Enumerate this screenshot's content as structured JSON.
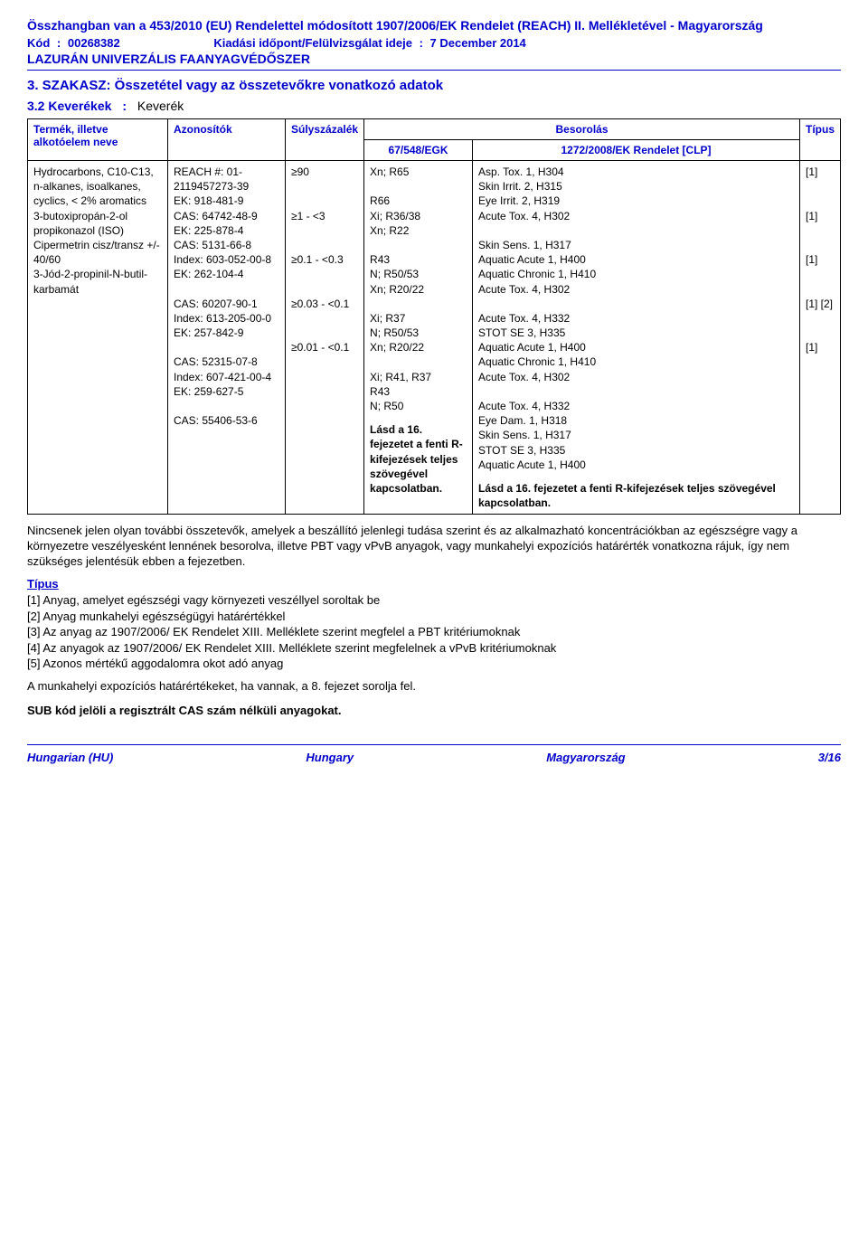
{
  "header": {
    "regulation_line": "Összhangban van a 453/2010 (EU) Rendelettel módosított 1907/2006/EK Rendelet (REACH) II. Mellékletével - Magyarország",
    "code_label": "Kód",
    "code_value": "00268382",
    "date_label": "Kiadási időpont/Felülvizsgálat ideje",
    "date_value": "7 December 2014",
    "product": "LAZURÁN UNIVERZÁLIS FAANYAGVÉDŐSZER"
  },
  "section": {
    "title": "3. SZAKASZ: Összetétel vagy az összetevőkre vonatkozó adatok",
    "mix_label": "3.2 Keverékek",
    "mix_value": "Keverék"
  },
  "table": {
    "headers": {
      "product": "Termék, illetve alkotóelem neve",
      "ids": "Azonosítók",
      "pct": "Súlyszázalék",
      "class_title": "Besorolás",
      "egk": "67/548/EGK",
      "clp": "1272/2008/EK Rendelet [CLP]",
      "type": "Típus"
    },
    "rows": [
      {
        "name": "Hydrocarbons, C10-C13, n-alkanes, isoalkanes, cyclics, < 2% aromatics",
        "ids": "REACH #: 01-2119457273-39\nEK: 918-481-9\nCAS: 64742-48-9",
        "pct": "≥90",
        "egk": "Xn; R65\n\nR66",
        "clp": "Asp. Tox. 1, H304",
        "type": "[1]"
      },
      {
        "name": "3-butoxipropán-2-ol",
        "ids": "EK: 225-878-4\nCAS: 5131-66-8\nIndex: 603-052-00-8",
        "pct": "≥1 - <3",
        "egk": "Xi; R36/38",
        "clp": "Skin Irrit. 2, H315\nEye Irrit. 2, H319",
        "type": "[1]"
      },
      {
        "name": "propikonazol (ISO)",
        "ids": "EK: 262-104-4\n\nCAS: 60207-90-1\nIndex: 613-205-00-0",
        "pct": "≥0.1 - <0.3",
        "egk": "Xn; R22\n\nR43\nN; R50/53",
        "clp": "Acute Tox. 4, H302\n\nSkin Sens. 1, H317\nAquatic Acute 1, H400\nAquatic Chronic 1, H410",
        "type": "[1]"
      },
      {
        "name": "Cipermetrin cisz/transz +/- 40/60",
        "ids": "EK: 257-842-9\n\nCAS: 52315-07-8\nIndex: 607-421-00-4",
        "pct": "≥0.03 - <0.1",
        "egk": "Xn; R20/22\n\nXi; R37\nN; R50/53",
        "clp": "Acute Tox. 4, H302\n\nAcute Tox. 4, H332\nSTOT SE 3, H335\nAquatic Acute 1, H400\nAquatic Chronic 1, H410",
        "type": "[1] [2]"
      },
      {
        "name": "3-Jód-2-propinil-N-butil-karbamát",
        "ids": "EK: 259-627-5\n\nCAS: 55406-53-6",
        "pct": "≥0.01 - <0.1",
        "egk": "Xn; R20/22\n\nXi; R41, R37\nR43\nN; R50",
        "clp": "Acute Tox. 4, H302\n\nAcute Tox. 4, H332\nEye Dam. 1, H318\nSkin Sens. 1, H317\nSTOT SE 3, H335\nAquatic Acute 1, H400",
        "type": "[1]"
      }
    ],
    "footer_note_egk": "Lásd a 16. fejezetet a fenti R-kifejezések teljes szövegével kapcsolatban.",
    "footer_note_clp": "Lásd a 16. fejezetet a fenti R-kifejezések teljes szövegével kapcsolatban."
  },
  "below": {
    "para": "Nincsenek jelen olyan további összetevők, amelyek a beszállító jelenlegi tudása szerint és az alkalmazható koncentrációkban az egészségre vagy a környezetre veszélyesként lennének besorolva, illetve PBT vagy vPvB anyagok, vagy munkahelyi expozíciós határérték vonatkozna rájuk, így nem szükséges jelentésük ebben a fejezetben.",
    "type_heading": "Típus",
    "types": [
      "[1] Anyag, amelyet egészségi vagy környezeti veszéllyel soroltak be",
      "[2] Anyag munkahelyi egészségügyi határértékkel",
      "[3] Az anyag az 1907/2006/ EK Rendelet XIII. Melléklete szerint megfelel a PBT kritériumoknak",
      "[4] Az anyagok az 1907/2006/ EK Rendelet XIII. Melléklete szerint megfelelnek a vPvB kritériumoknak",
      "[5] Azonos mértékű aggodalomra okot adó anyag"
    ],
    "exposure_line": "A munkahelyi expozíciós határértékeket, ha vannak, a 8. fejezet sorolja fel.",
    "sub_line": "SUB kód jelöli a regisztrált CAS szám nélküli anyagokat."
  },
  "footer": {
    "left": "Hungarian (HU)",
    "center": "Hungary",
    "right_label": "Magyarország",
    "page": "3/16"
  }
}
